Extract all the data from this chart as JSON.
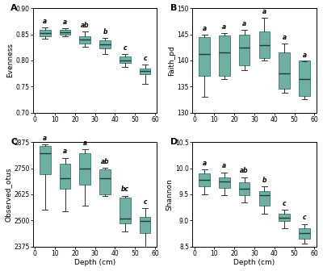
{
  "panels": [
    {
      "label": "A",
      "ylabel": "Evenness",
      "ylim": [
        0.7,
        0.9
      ],
      "yticks": [
        0.7,
        0.75,
        0.8,
        0.85,
        0.9
      ],
      "sig_labels": [
        "a",
        "a",
        "ab",
        "b",
        "c",
        "c"
      ],
      "boxes": [
        {
          "x": 5,
          "med": 0.853,
          "q1": 0.847,
          "q3": 0.858,
          "whislo": 0.841,
          "whishi": 0.863
        },
        {
          "x": 15,
          "med": 0.854,
          "q1": 0.85,
          "q3": 0.858,
          "whislo": 0.846,
          "whishi": 0.862
        },
        {
          "x": 25,
          "med": 0.84,
          "q1": 0.833,
          "q3": 0.847,
          "whislo": 0.826,
          "whishi": 0.855
        },
        {
          "x": 35,
          "med": 0.831,
          "q1": 0.823,
          "q3": 0.838,
          "whislo": 0.812,
          "whishi": 0.843
        },
        {
          "x": 45,
          "med": 0.8,
          "q1": 0.795,
          "q3": 0.807,
          "whislo": 0.787,
          "whishi": 0.812
        },
        {
          "x": 55,
          "med": 0.779,
          "q1": 0.773,
          "q3": 0.785,
          "whislo": 0.755,
          "whishi": 0.792
        }
      ]
    },
    {
      "label": "B",
      "ylabel": "Faith_pd",
      "ylim": [
        130,
        150
      ],
      "yticks": [
        130,
        135,
        140,
        145,
        150
      ],
      "sig_labels": [
        "a",
        "a",
        "a",
        "a",
        "a",
        "a"
      ],
      "boxes": [
        {
          "x": 5,
          "med": 141.2,
          "q1": 137.0,
          "q3": 144.5,
          "whislo": 133.0,
          "whishi": 144.9
        },
        {
          "x": 15,
          "med": 141.5,
          "q1": 137.0,
          "q3": 144.8,
          "whislo": 136.5,
          "whishi": 145.2
        },
        {
          "x": 25,
          "med": 142.5,
          "q1": 139.0,
          "q3": 145.0,
          "whislo": 138.2,
          "whishi": 145.8
        },
        {
          "x": 35,
          "med": 143.0,
          "q1": 140.5,
          "q3": 145.5,
          "whislo": 140.0,
          "whishi": 148.2
        },
        {
          "x": 45,
          "med": 137.5,
          "q1": 134.5,
          "q3": 141.5,
          "whislo": 133.8,
          "whishi": 143.2
        },
        {
          "x": 55,
          "med": 136.5,
          "q1": 133.2,
          "q3": 140.0,
          "whislo": 132.5,
          "whishi": 139.8
        }
      ]
    },
    {
      "label": "C",
      "ylabel": "Observed_otus",
      "ylim": [
        2375,
        2875
      ],
      "yticks": [
        2375,
        2500,
        2625,
        2750,
        2875
      ],
      "sig_labels": [
        "a",
        "a",
        "a",
        "ab",
        "bc",
        "c"
      ],
      "boxes": [
        {
          "x": 5,
          "med": 2820,
          "q1": 2720,
          "q3": 2855,
          "whislo": 2550,
          "whishi": 2865
        },
        {
          "x": 15,
          "med": 2700,
          "q1": 2650,
          "q3": 2770,
          "whislo": 2545,
          "whishi": 2800
        },
        {
          "x": 25,
          "med": 2750,
          "q1": 2670,
          "q3": 2820,
          "whislo": 2570,
          "whishi": 2840
        },
        {
          "x": 35,
          "med": 2700,
          "q1": 2625,
          "q3": 2745,
          "whislo": 2618,
          "whishi": 2752
        },
        {
          "x": 45,
          "med": 2508,
          "q1": 2485,
          "q3": 2610,
          "whislo": 2445,
          "whishi": 2618
        },
        {
          "x": 55,
          "med": 2498,
          "q1": 2438,
          "q3": 2518,
          "whislo": 2368,
          "whishi": 2558
        }
      ]
    },
    {
      "label": "D",
      "ylabel": "Shannon",
      "ylim": [
        8.5,
        10.5
      ],
      "yticks": [
        8.5,
        9.0,
        9.5,
        10.0,
        10.5
      ],
      "sig_labels": [
        "a",
        "a",
        "ab",
        "b",
        "c",
        "c"
      ],
      "boxes": [
        {
          "x": 5,
          "med": 9.78,
          "q1": 9.65,
          "q3": 9.9,
          "whislo": 9.5,
          "whishi": 9.98
        },
        {
          "x": 15,
          "med": 9.75,
          "q1": 9.62,
          "q3": 9.83,
          "whislo": 9.48,
          "whishi": 9.92
        },
        {
          "x": 25,
          "med": 9.6,
          "q1": 9.48,
          "q3": 9.73,
          "whislo": 9.35,
          "whishi": 9.83
        },
        {
          "x": 35,
          "med": 9.48,
          "q1": 9.28,
          "q3": 9.56,
          "whislo": 9.12,
          "whishi": 9.65
        },
        {
          "x": 45,
          "med": 9.05,
          "q1": 8.98,
          "q3": 9.13,
          "whislo": 8.85,
          "whishi": 9.2
        },
        {
          "x": 55,
          "med": 8.75,
          "q1": 8.65,
          "q3": 8.85,
          "whislo": 8.55,
          "whishi": 8.93
        }
      ]
    }
  ],
  "box_facecolor": "#5fa898",
  "box_edgecolor": "#3d7a6e",
  "median_color": "#1a3a44",
  "whisker_color": "#333333",
  "cap_color": "#333333",
  "sig_fontsize": 5.5,
  "ylabel_fontsize": 6.5,
  "xlabel_fontsize": 6.5,
  "tick_fontsize": 5.5,
  "panel_label_fontsize": 8,
  "xlabel": "Depth (cm)",
  "xticks": [
    0,
    10,
    20,
    30,
    40,
    50,
    60
  ],
  "box_width": 5.5
}
